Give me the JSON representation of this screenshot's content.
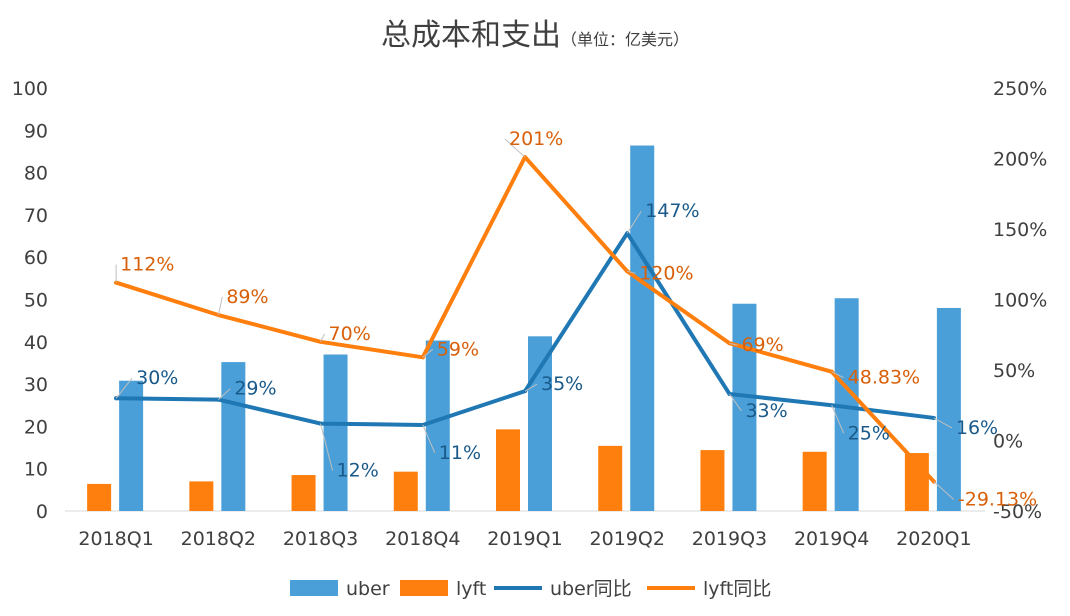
{
  "chart_data": {
    "type": "bar",
    "title": "总成本和支出",
    "subtitle": "（单位：亿美元）",
    "categories": [
      "2018Q1",
      "2018Q2",
      "2018Q3",
      "2018Q4",
      "2019Q1",
      "2019Q2",
      "2019Q3",
      "2019Q4",
      "2020Q1"
    ],
    "series": [
      {
        "name": "uber",
        "type": "bar",
        "axis": "left",
        "color": "#4A9FD8",
        "values": [
          30.8,
          35.2,
          37.0,
          40.3,
          41.3,
          86.4,
          49.0,
          50.3,
          48.0
        ]
      },
      {
        "name": "lyft",
        "type": "bar",
        "axis": "left",
        "color": "#FF7F0E",
        "values": [
          6.4,
          7.0,
          8.5,
          9.3,
          19.3,
          15.4,
          14.4,
          14.0,
          13.7
        ]
      },
      {
        "name": "uber同比",
        "type": "line",
        "axis": "right",
        "color": "#1F77B4",
        "values": [
          30,
          29,
          12,
          11,
          35,
          147,
          33,
          25,
          16
        ],
        "labels": [
          "30%",
          "29%",
          "12%",
          "11%",
          "35%",
          "147%",
          "33%",
          "25%",
          "16%"
        ]
      },
      {
        "name": "lyft同比",
        "type": "line",
        "axis": "right",
        "color": "#FF7F0E",
        "values": [
          112,
          89,
          70,
          59,
          201,
          120,
          69,
          48.83,
          -29.13
        ],
        "labels": [
          "112%",
          "89%",
          "70%",
          "59%",
          "201%",
          "120%",
          "69%",
          "48.83%",
          "-29.13%"
        ]
      }
    ],
    "y_left": {
      "min": 0,
      "max": 100,
      "ticks": [
        "0",
        "10",
        "20",
        "30",
        "40",
        "50",
        "60",
        "70",
        "80",
        "90",
        "100"
      ]
    },
    "y_right": {
      "min": -50,
      "max": 250,
      "ticks": [
        "-50%",
        "0%",
        "50%",
        "100%",
        "150%",
        "200%",
        "250%"
      ]
    },
    "grid": false,
    "legend": "bottom-center"
  }
}
